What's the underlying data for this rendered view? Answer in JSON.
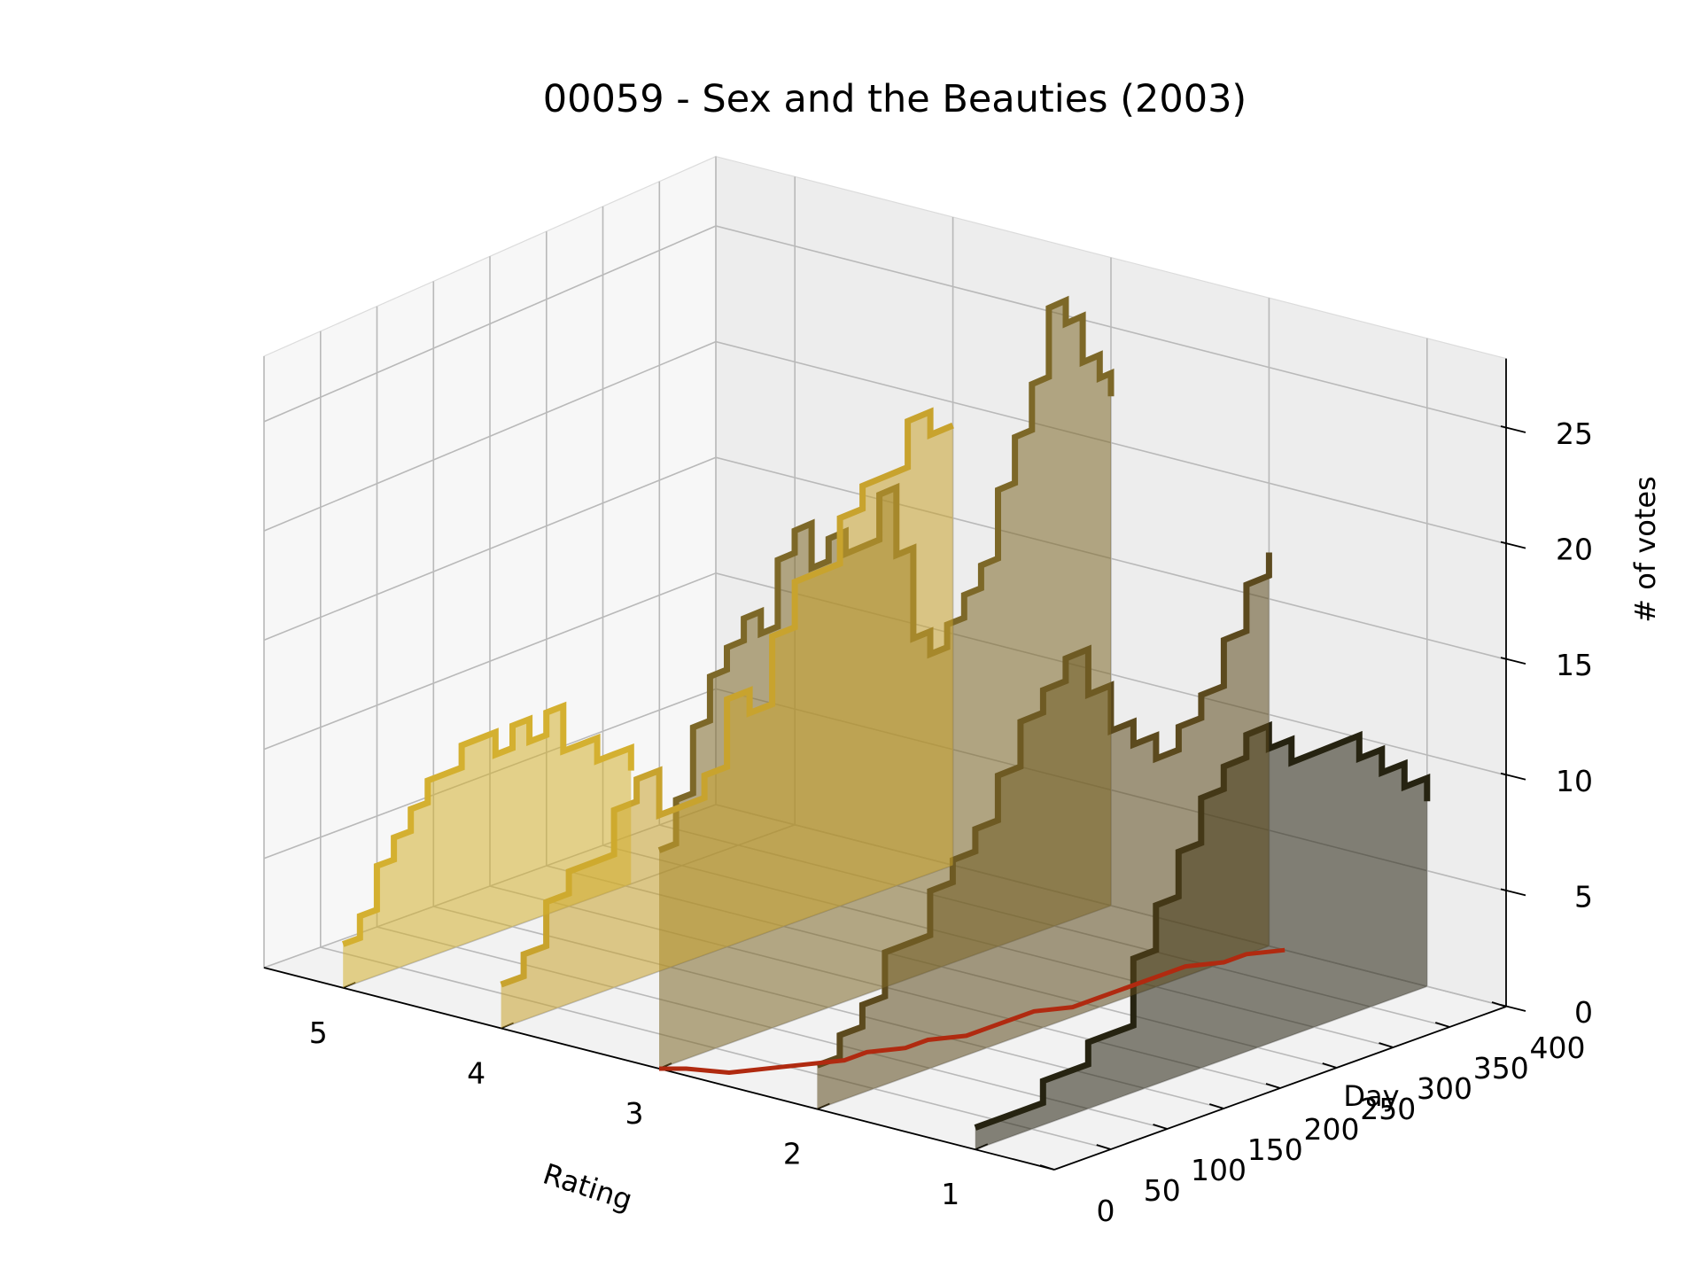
{
  "chart_data": {
    "type": "3d-step-area",
    "title": "00059 - Sex and the Beauties (2003)",
    "xlabel": "Rating",
    "ylabel": "Day",
    "zlabel": "# of votes",
    "x_ticks": [
      "5",
      "4",
      "3",
      "2",
      "1"
    ],
    "y_ticks": [
      "0",
      "50",
      "100",
      "150",
      "200",
      "250",
      "300",
      "350",
      "400"
    ],
    "z_ticks": [
      "0",
      "5",
      "10",
      "15",
      "20",
      "25"
    ],
    "xlim": [
      0.5,
      5.5
    ],
    "ylim": [
      0,
      400
    ],
    "zlim": [
      0,
      28
    ],
    "grid": true,
    "series": [
      {
        "rating": 5,
        "color": "#d4b030",
        "days": [
          0,
          15,
          30,
          45,
          60,
          75,
          90,
          105,
          120,
          135,
          150,
          165,
          180,
          195,
          210,
          225,
          240,
          255
        ],
        "votes": [
          2,
          3,
          5,
          6,
          7,
          8,
          8,
          9,
          9,
          8,
          9,
          8,
          9,
          7,
          7,
          6,
          6,
          5
        ]
      },
      {
        "rating": 4,
        "color": "#c8a32e",
        "days": [
          0,
          20,
          40,
          60,
          80,
          100,
          120,
          140,
          160,
          180,
          200,
          220,
          240,
          260,
          280,
          300,
          320,
          340,
          360,
          380,
          400
        ],
        "votes": [
          2,
          3,
          5,
          6,
          6,
          8,
          9,
          7,
          7,
          8,
          11,
          10,
          13,
          15,
          15,
          17,
          18,
          18,
          20,
          19,
          19
        ]
      },
      {
        "rating": 3,
        "color": "#7d6828",
        "days": [
          0,
          15,
          30,
          45,
          60,
          75,
          90,
          105,
          120,
          135,
          150,
          165,
          180,
          195,
          210,
          225,
          240,
          255,
          270,
          285,
          300,
          315,
          330,
          345,
          360,
          375,
          390,
          400
        ],
        "votes": [
          10,
          12,
          15,
          17,
          18,
          19,
          18,
          21,
          22,
          20,
          21,
          20,
          20,
          22,
          19,
          15,
          14,
          15,
          16,
          17,
          20,
          22,
          24,
          27,
          26,
          24,
          23,
          22
        ]
      },
      {
        "rating": 2,
        "color": "#5c4a1e",
        "days": [
          0,
          20,
          40,
          60,
          80,
          100,
          120,
          140,
          160,
          180,
          200,
          220,
          240,
          260,
          280,
          300,
          320,
          340,
          360,
          380,
          400
        ],
        "votes": [
          2,
          3,
          4,
          6,
          6,
          8,
          9,
          10,
          12,
          14,
          15,
          16,
          14,
          12,
          11,
          10,
          11,
          12,
          14,
          16,
          17
        ]
      },
      {
        "rating": 1,
        "color": "#262311",
        "days": [
          0,
          20,
          40,
          60,
          80,
          100,
          120,
          140,
          160,
          180,
          200,
          220,
          240,
          260,
          280,
          300,
          320,
          340,
          360,
          380,
          400
        ],
        "votes": [
          1,
          1,
          1,
          2,
          2,
          3,
          3,
          6,
          8,
          10,
          12,
          13,
          14,
          13,
          12,
          12,
          12,
          11,
          10,
          9,
          8
        ]
      }
    ],
    "mean_line": {
      "color": "#b02a10",
      "days": [
        0,
        10,
        20,
        40,
        60,
        80,
        100,
        120,
        140,
        160,
        180,
        200,
        220,
        240,
        260,
        280,
        300,
        320,
        340,
        360,
        380,
        400
      ],
      "votes": [
        0,
        1,
        3,
        4,
        5,
        6,
        6,
        7,
        7,
        8,
        8,
        8,
        8,
        9,
        9,
        9,
        9,
        9,
        9,
        10,
        10,
        11
      ]
    }
  }
}
